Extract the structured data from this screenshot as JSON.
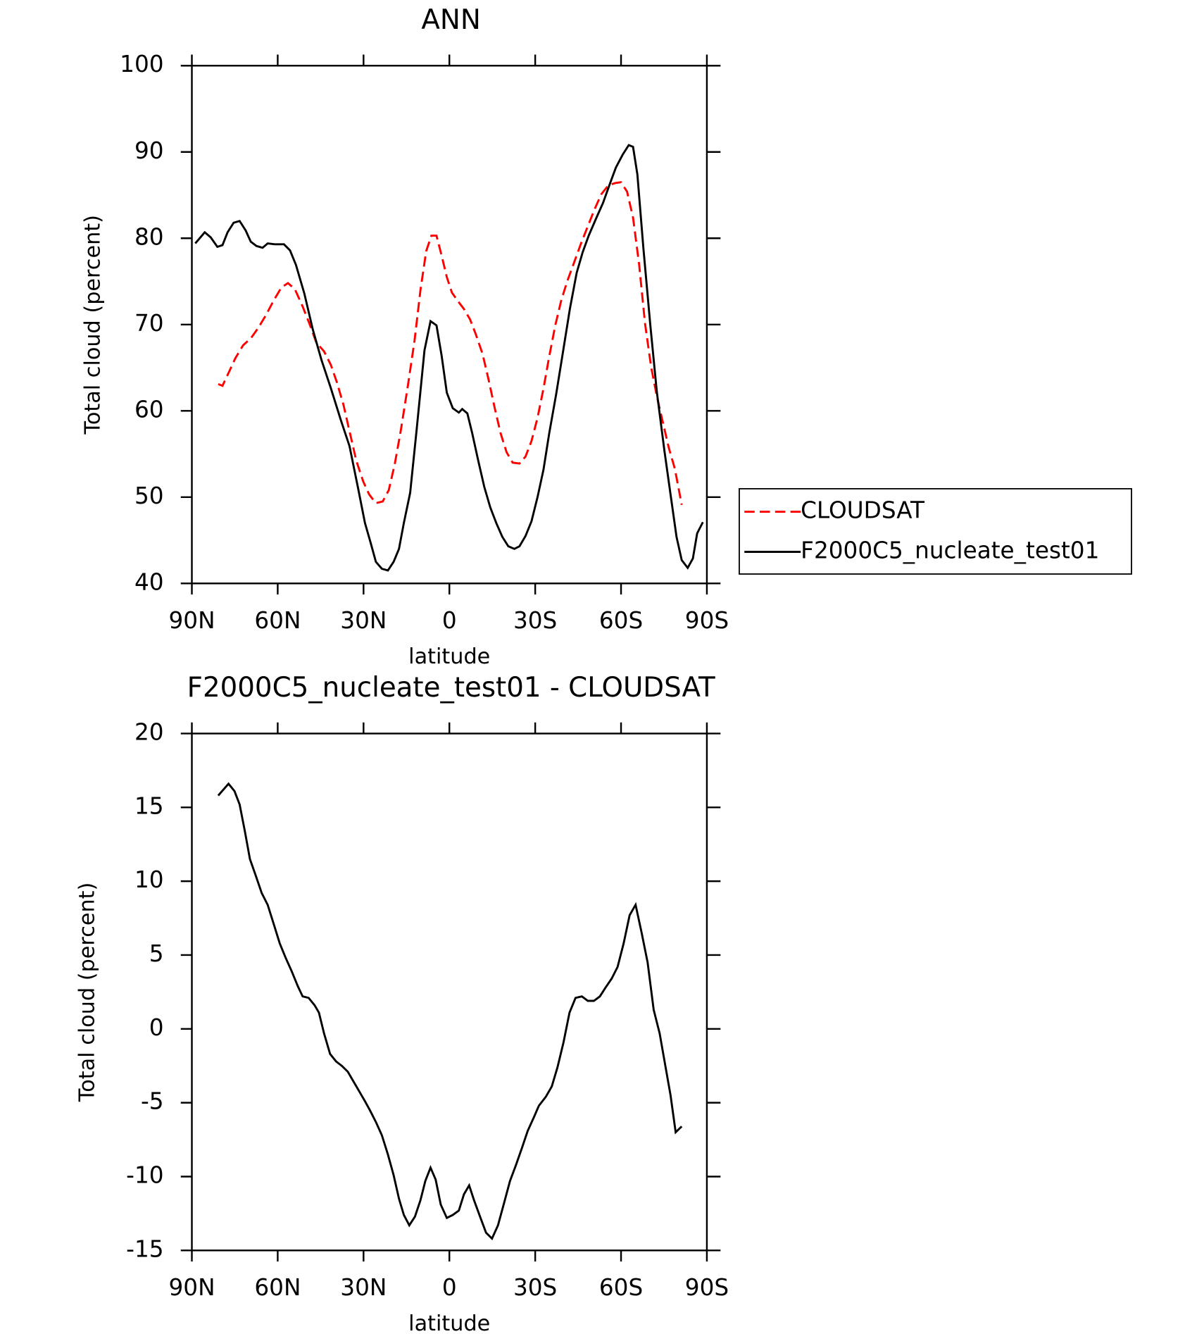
{
  "chart_data": [
    {
      "type": "line",
      "title": "ANN",
      "xlabel": "latitude",
      "ylabel": "Total cloud (percent)",
      "xlim": [
        90,
        -90
      ],
      "xticks": [
        {
          "value": 90,
          "label": "90N"
        },
        {
          "value": 60,
          "label": "60N"
        },
        {
          "value": 30,
          "label": "30N"
        },
        0,
        {
          "value": -30,
          "label": "30S"
        },
        {
          "value": -60,
          "label": "60S"
        },
        {
          "value": -90,
          "label": "90S"
        }
      ],
      "ylim": [
        40,
        100
      ],
      "yticks": [
        40,
        50,
        60,
        70,
        80,
        90,
        100
      ],
      "legend": "right",
      "series": [
        {
          "name": "CLOUDSAT",
          "color": "#ff0000",
          "dash": true,
          "x": [
            80.8,
            79.3,
            77.2,
            74.8,
            72.1,
            69.4,
            66.8,
            64.1,
            61.4,
            58.7,
            56.4,
            54.0,
            51.3,
            48.9,
            46.5,
            43.8,
            41.4,
            39.3,
            37.0,
            34.6,
            32.5,
            30.1,
            28.0,
            25.7,
            23.3,
            21.2,
            19.1,
            17.0,
            14.6,
            12.2,
            10.1,
            8.1,
            6.3,
            4.5,
            2.7,
            0.9,
            -0.9,
            -3.0,
            -5.1,
            -7.2,
            -9.2,
            -11.6,
            -13.7,
            -15.8,
            -17.9,
            -20.0,
            -22.1,
            -24.5,
            -26.6,
            -28.7,
            -30.8,
            -32.9,
            -34.9,
            -37.0,
            -39.1,
            -41.2,
            -43.6,
            -46.0,
            -48.4,
            -50.8,
            -53.1,
            -55.5,
            -57.9,
            -60.0,
            -62.1,
            -64.2,
            -66.3,
            -68.4,
            -70.5,
            -72.5,
            -74.6,
            -76.7,
            -78.8,
            -81.2
          ],
          "values": [
            63.1,
            62.9,
            64.4,
            66.1,
            67.6,
            68.4,
            69.6,
            71.1,
            72.8,
            74.3,
            74.8,
            74.1,
            72.1,
            70.1,
            67.9,
            66.9,
            65.3,
            63.3,
            60.7,
            57.2,
            54.2,
            51.8,
            50.3,
            49.3,
            49.5,
            50.8,
            53.8,
            57.7,
            62.7,
            68.1,
            74.0,
            78.5,
            80.3,
            80.3,
            78.0,
            75.5,
            73.7,
            72.7,
            71.8,
            70.6,
            68.9,
            66.6,
            63.6,
            60.4,
            57.4,
            55.2,
            54.0,
            53.9,
            54.7,
            56.5,
            59.2,
            62.6,
            66.3,
            69.9,
            72.8,
            75.0,
            77.2,
            79.4,
            81.4,
            83.4,
            85.1,
            86.1,
            86.4,
            86.5,
            85.4,
            82.4,
            77.0,
            70.1,
            65.1,
            61.7,
            58.7,
            55.7,
            53.3,
            49.1
          ]
        },
        {
          "name": "F2000C5_nucleate_test01",
          "color": "#000000",
          "x": [
            88.8,
            85.5,
            83.4,
            81.1,
            79.3,
            77.5,
            75.4,
            73.3,
            71.2,
            69.4,
            67.4,
            65.3,
            63.5,
            61.1,
            57.8,
            55.7,
            53.6,
            50.7,
            47.7,
            44.7,
            41.4,
            37.9,
            34.9,
            31.9,
            29.5,
            27.5,
            25.7,
            23.6,
            21.5,
            19.5,
            17.6,
            15.9,
            13.7,
            11.4,
            8.7,
            6.6,
            4.5,
            2.7,
            0.9,
            -1.2,
            -3.3,
            -4.5,
            -6.3,
            -8.0,
            -10.1,
            -12.2,
            -14.3,
            -16.4,
            -18.5,
            -20.6,
            -22.7,
            -24.5,
            -26.6,
            -28.7,
            -30.8,
            -32.9,
            -34.9,
            -37.3,
            -39.7,
            -42.1,
            -44.5,
            -46.6,
            -48.7,
            -51.3,
            -53.7,
            -56.1,
            -58.2,
            -60.6,
            -62.7,
            -64.2,
            -65.7,
            -67.8,
            -70.2,
            -72.5,
            -75.2,
            -77.3,
            -79.4,
            -81.2,
            -83.3,
            -85.1,
            -86.6,
            -88.6
          ],
          "values": [
            79.4,
            80.7,
            80.1,
            79.0,
            79.2,
            80.7,
            81.8,
            82.0,
            80.9,
            79.6,
            79.1,
            78.9,
            79.4,
            79.3,
            79.3,
            78.6,
            76.9,
            73.6,
            69.4,
            65.9,
            62.6,
            58.9,
            55.9,
            51.0,
            47.0,
            44.7,
            42.5,
            41.7,
            41.5,
            42.5,
            44.0,
            47.0,
            50.5,
            57.9,
            67.0,
            70.4,
            69.9,
            66.4,
            62.1,
            60.3,
            59.8,
            60.2,
            59.7,
            57.4,
            54.2,
            51.2,
            48.8,
            47.0,
            45.4,
            44.3,
            44.0,
            44.3,
            45.5,
            47.2,
            50.0,
            53.2,
            57.4,
            61.9,
            66.8,
            71.8,
            76.0,
            78.4,
            80.3,
            82.3,
            84.1,
            86.3,
            88.2,
            89.7,
            90.8,
            90.6,
            87.4,
            78.9,
            70.0,
            62.2,
            55.3,
            50.3,
            45.4,
            42.7,
            41.8,
            42.9,
            45.8,
            47.1
          ]
        }
      ]
    },
    {
      "type": "line",
      "title": "F2000C5_nucleate_test01 - CLOUDSAT",
      "xlabel": "latitude",
      "ylabel": "Total cloud (percent)",
      "xlim": [
        90,
        -90
      ],
      "xticks": [
        {
          "value": 90,
          "label": "90N"
        },
        {
          "value": 60,
          "label": "60N"
        },
        {
          "value": 30,
          "label": "30N"
        },
        0,
        {
          "value": -30,
          "label": "30S"
        },
        {
          "value": -60,
          "label": "60S"
        },
        {
          "value": -90,
          "label": "90S"
        }
      ],
      "ylim": [
        -15,
        20
      ],
      "yticks": [
        -15,
        -10,
        -5,
        0,
        5,
        10,
        15,
        20
      ],
      "series": [
        {
          "color": "#000000",
          "x": [
            80.8,
            79.0,
            77.2,
            75.1,
            73.3,
            71.5,
            69.7,
            67.7,
            65.6,
            63.5,
            61.4,
            59.3,
            57.2,
            55.1,
            53.0,
            51.3,
            49.2,
            47.1,
            45.6,
            43.8,
            41.7,
            39.6,
            37.6,
            35.5,
            33.4,
            31.3,
            29.5,
            27.8,
            25.7,
            23.6,
            21.5,
            19.5,
            17.6,
            15.9,
            14.0,
            12.0,
            10.1,
            8.4,
            6.6,
            4.8,
            3.0,
            0.9,
            -1.2,
            -3.3,
            -5.1,
            -6.9,
            -8.6,
            -10.7,
            -12.8,
            -14.9,
            -17.0,
            -19.1,
            -21.2,
            -23.3,
            -25.3,
            -27.4,
            -29.5,
            -31.3,
            -33.7,
            -35.8,
            -37.8,
            -39.9,
            -42.0,
            -44.1,
            -46.3,
            -48.4,
            -50.5,
            -52.6,
            -54.6,
            -56.7,
            -58.8,
            -60.9,
            -63.0,
            -65.1,
            -67.2,
            -69.3,
            -71.4,
            -73.5,
            -75.5,
            -77.3,
            -79.1,
            -81.2
          ],
          "values": [
            15.8,
            16.2,
            16.6,
            16.1,
            15.2,
            13.4,
            11.5,
            10.4,
            9.2,
            8.4,
            7.1,
            5.8,
            4.8,
            3.9,
            2.9,
            2.2,
            2.1,
            1.6,
            1.1,
            -0.3,
            -1.7,
            -2.2,
            -2.5,
            -2.9,
            -3.6,
            -4.3,
            -4.9,
            -5.5,
            -6.3,
            -7.2,
            -8.5,
            -9.9,
            -11.5,
            -12.6,
            -13.3,
            -12.7,
            -11.6,
            -10.3,
            -9.4,
            -10.2,
            -11.9,
            -12.8,
            -12.6,
            -12.3,
            -11.2,
            -10.6,
            -11.6,
            -12.7,
            -13.8,
            -14.2,
            -13.3,
            -11.8,
            -10.3,
            -9.2,
            -8.1,
            -6.9,
            -6.0,
            -5.2,
            -4.6,
            -3.9,
            -2.6,
            -0.9,
            1.1,
            2.1,
            2.2,
            1.9,
            1.9,
            2.2,
            2.8,
            3.4,
            4.2,
            5.8,
            7.7,
            8.4,
            6.5,
            4.5,
            1.3,
            -0.3,
            -2.5,
            -4.5,
            -7.0,
            -6.6
          ]
        }
      ]
    }
  ]
}
